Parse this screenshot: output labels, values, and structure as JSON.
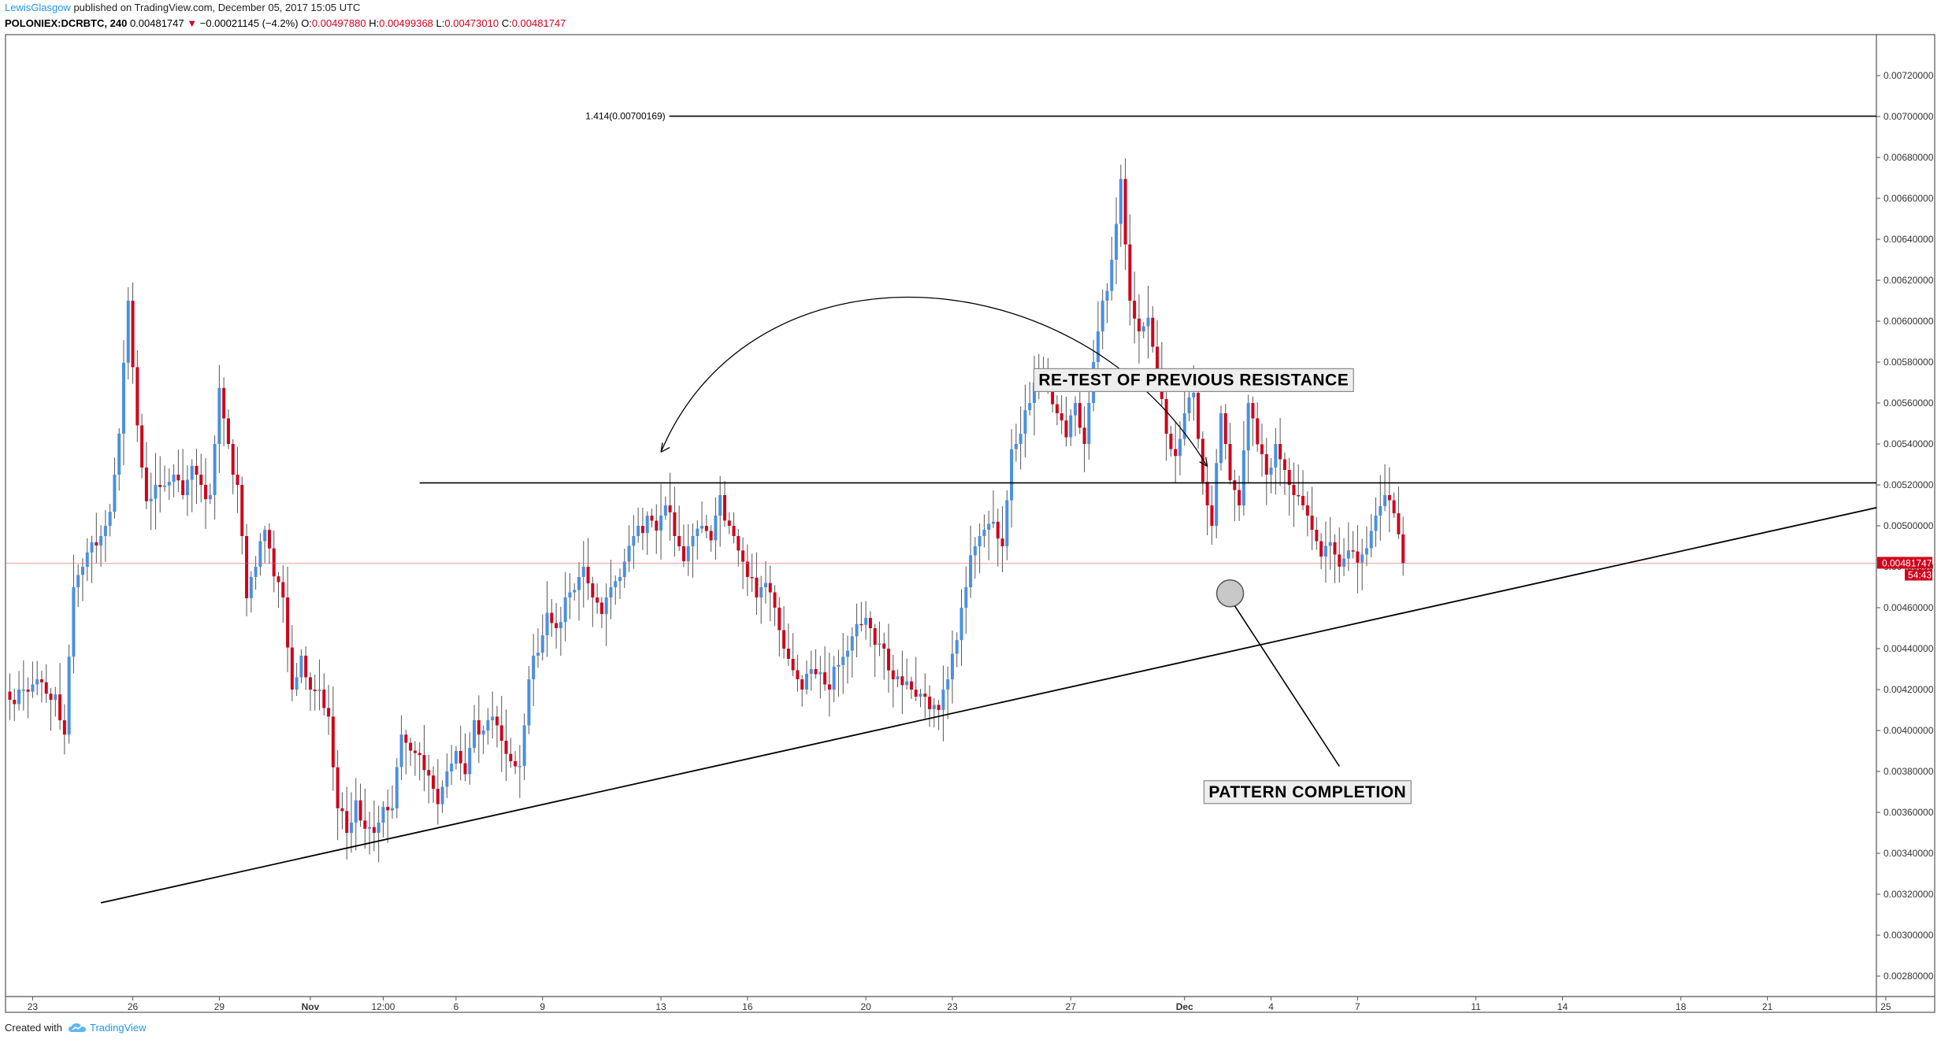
{
  "header": {
    "user": "LewisGlasgow",
    "published_text": " published on TradingView.com, December 05, 2017 15:05 UTC",
    "symbol": "POLONIEX:DCRBTC, 240",
    "last": "0.00481747",
    "change_arrow": "▼",
    "change": "−0.00021145 (−4.2%)",
    "o_label": "O:",
    "o_value": "0.00497880",
    "h_label": "H:",
    "h_value": "0.00499368",
    "l_label": "L:",
    "l_value": "0.00473010",
    "c_label": "C:",
    "c_value": "0.00481747"
  },
  "footer": {
    "created_with": "Created with",
    "brand": "TradingView",
    "logo_icon": "tradingview-cloud-icon"
  },
  "colors": {
    "up": "#4a90e2",
    "down": "#d0021b",
    "wick": "#555555",
    "last_price_label": "#d0021b",
    "border": "#555555"
  },
  "chart_data": {
    "type": "candlestick",
    "ylim": [
      0.0027,
      0.0074
    ],
    "price_axis_ticks": [
      "0.00280000",
      "0.00300000",
      "0.00320000",
      "0.00340000",
      "0.00360000",
      "0.00380000",
      "0.00400000",
      "0.00420000",
      "0.00440000",
      "0.00460000",
      "0.00480000",
      "0.00500000",
      "0.00520000",
      "0.00540000",
      "0.00560000",
      "0.00580000",
      "0.00600000",
      "0.00620000",
      "0.00640000",
      "0.00660000",
      "0.00680000",
      "0.00700000",
      "0.00720000"
    ],
    "time_axis_ticks": [
      {
        "label": "23",
        "bar": 5,
        "bold": false
      },
      {
        "label": "26",
        "bar": 27,
        "bold": false
      },
      {
        "label": "29",
        "bar": 46,
        "bold": false
      },
      {
        "label": "Nov",
        "bar": 66,
        "bold": true
      },
      {
        "label": "12:00",
        "bar": 82,
        "bold": false
      },
      {
        "label": "6",
        "bar": 98,
        "bold": false
      },
      {
        "label": "9",
        "bar": 117,
        "bold": false
      },
      {
        "label": "13",
        "bar": 143,
        "bold": false
      },
      {
        "label": "16",
        "bar": 162,
        "bold": false
      },
      {
        "label": "20",
        "bar": 188,
        "bold": false
      },
      {
        "label": "23",
        "bar": 207,
        "bold": false
      },
      {
        "label": "27",
        "bar": 233,
        "bold": false
      },
      {
        "label": "Dec",
        "bar": 258,
        "bold": true
      },
      {
        "label": "4",
        "bar": 277,
        "bold": false
      },
      {
        "label": "7",
        "bar": 296,
        "bold": false
      },
      {
        "label": "11",
        "bar": 322,
        "bold": false
      },
      {
        "label": "14",
        "bar": 341,
        "bold": false
      },
      {
        "label": "18",
        "bar": 367,
        "bold": false
      },
      {
        "label": "21",
        "bar": 386,
        "bold": false
      },
      {
        "label": "25",
        "bar": 412,
        "bold": false
      }
    ],
    "close_anchors": [
      [
        0,
        0.00415
      ],
      [
        2,
        0.0042
      ],
      [
        4,
        0.0042
      ],
      [
        6,
        0.00425
      ],
      [
        8,
        0.00418
      ],
      [
        10,
        0.00412
      ],
      [
        12,
        0.00398
      ],
      [
        14,
        0.0047
      ],
      [
        16,
        0.00482
      ],
      [
        18,
        0.00492
      ],
      [
        20,
        0.00495
      ],
      [
        22,
        0.00505
      ],
      [
        24,
        0.00545
      ],
      [
        26,
        0.0061
      ],
      [
        28,
        0.00545
      ],
      [
        30,
        0.00512
      ],
      [
        32,
        0.0052
      ],
      [
        34,
        0.00518
      ],
      [
        36,
        0.00525
      ],
      [
        38,
        0.00515
      ],
      [
        40,
        0.0053
      ],
      [
        42,
        0.0052
      ],
      [
        44,
        0.00515
      ],
      [
        46,
        0.00565
      ],
      [
        48,
        0.0054
      ],
      [
        50,
        0.0052
      ],
      [
        52,
        0.0047
      ],
      [
        54,
        0.0048
      ],
      [
        56,
        0.00498
      ],
      [
        58,
        0.0048
      ],
      [
        60,
        0.00465
      ],
      [
        62,
        0.0042
      ],
      [
        64,
        0.00432
      ],
      [
        66,
        0.0042
      ],
      [
        68,
        0.0042
      ],
      [
        70,
        0.00402
      ],
      [
        72,
        0.00362
      ],
      [
        74,
        0.0035
      ],
      [
        76,
        0.0036
      ],
      [
        78,
        0.00352
      ],
      [
        80,
        0.0035
      ],
      [
        82,
        0.0036
      ],
      [
        84,
        0.00362
      ],
      [
        86,
        0.00398
      ],
      [
        88,
        0.0039
      ],
      [
        90,
        0.00388
      ],
      [
        92,
        0.00378
      ],
      [
        94,
        0.00365
      ],
      [
        96,
        0.0038
      ],
      [
        98,
        0.0039
      ],
      [
        100,
        0.00378
      ],
      [
        102,
        0.00405
      ],
      [
        104,
        0.004
      ],
      [
        106,
        0.0041
      ],
      [
        108,
        0.00395
      ],
      [
        110,
        0.00385
      ],
      [
        112,
        0.0038
      ],
      [
        114,
        0.00425
      ],
      [
        116,
        0.00438
      ],
      [
        118,
        0.00455
      ],
      [
        120,
        0.0045
      ],
      [
        122,
        0.00465
      ],
      [
        124,
        0.0047
      ],
      [
        126,
        0.0048
      ],
      [
        128,
        0.00465
      ],
      [
        130,
        0.0046
      ],
      [
        132,
        0.0047
      ],
      [
        134,
        0.00475
      ],
      [
        136,
        0.0049
      ],
      [
        138,
        0.005
      ],
      [
        140,
        0.00505
      ],
      [
        142,
        0.005
      ],
      [
        144,
        0.0051
      ],
      [
        146,
        0.00495
      ],
      [
        148,
        0.00485
      ],
      [
        150,
        0.00495
      ],
      [
        152,
        0.005
      ],
      [
        154,
        0.00495
      ],
      [
        156,
        0.00515
      ],
      [
        158,
        0.005
      ],
      [
        160,
        0.0049
      ],
      [
        162,
        0.00475
      ],
      [
        164,
        0.00465
      ],
      [
        166,
        0.00475
      ],
      [
        168,
        0.0046
      ],
      [
        170,
        0.0044
      ],
      [
        172,
        0.0043
      ],
      [
        174,
        0.0042
      ],
      [
        176,
        0.0043
      ],
      [
        178,
        0.00425
      ],
      [
        180,
        0.0042
      ],
      [
        182,
        0.00432
      ],
      [
        184,
        0.0044
      ],
      [
        186,
        0.00452
      ],
      [
        188,
        0.00455
      ],
      [
        190,
        0.00445
      ],
      [
        192,
        0.0044
      ],
      [
        194,
        0.00425
      ],
      [
        196,
        0.00428
      ],
      [
        198,
        0.0042
      ],
      [
        200,
        0.00418
      ],
      [
        202,
        0.00415
      ],
      [
        204,
        0.0041
      ],
      [
        206,
        0.00425
      ],
      [
        208,
        0.0045
      ],
      [
        210,
        0.0047
      ],
      [
        212,
        0.0049
      ],
      [
        214,
        0.005
      ],
      [
        216,
        0.00502
      ],
      [
        218,
        0.0049
      ],
      [
        220,
        0.00535
      ],
      [
        222,
        0.00545
      ],
      [
        224,
        0.0056
      ],
      [
        226,
        0.0058
      ],
      [
        228,
        0.0057
      ],
      [
        230,
        0.00555
      ],
      [
        232,
        0.00548
      ],
      [
        234,
        0.0056
      ],
      [
        236,
        0.0054
      ],
      [
        238,
        0.0058
      ],
      [
        240,
        0.0061
      ],
      [
        242,
        0.0063
      ],
      [
        244,
        0.00665
      ],
      [
        246,
        0.0061
      ],
      [
        248,
        0.00595
      ],
      [
        250,
        0.006
      ],
      [
        252,
        0.00575
      ],
      [
        254,
        0.00545
      ],
      [
        256,
        0.0053
      ],
      [
        258,
        0.00555
      ],
      [
        260,
        0.00565
      ],
      [
        262,
        0.0052
      ],
      [
        264,
        0.005
      ],
      [
        266,
        0.00555
      ],
      [
        268,
        0.00525
      ],
      [
        270,
        0.0051
      ],
      [
        272,
        0.0056
      ],
      [
        274,
        0.00545
      ],
      [
        276,
        0.00525
      ],
      [
        278,
        0.0054
      ],
      [
        280,
        0.00525
      ],
      [
        282,
        0.00515
      ],
      [
        284,
        0.0051
      ],
      [
        286,
        0.005
      ],
      [
        288,
        0.00485
      ],
      [
        290,
        0.00492
      ],
      [
        292,
        0.0048
      ],
      [
        294,
        0.00488
      ],
      [
        296,
        0.00482
      ],
      [
        298,
        0.0049
      ],
      [
        300,
        0.00505
      ],
      [
        302,
        0.00515
      ],
      [
        304,
        0.0051
      ],
      [
        306,
        0.00481747
      ]
    ],
    "total_bars": 307,
    "last_price": {
      "value": 0.00481747,
      "label": "0.00481747",
      "countdown": "54:43"
    },
    "fib_level": {
      "label": "1.414(0.00700169)",
      "value": 0.00700169
    },
    "resistance_line": {
      "value": 0.00521,
      "from_bar": 90
    },
    "trendline": {
      "from": [
        20,
        0.003158
      ],
      "to": [
        410,
        0.005089
      ]
    },
    "arc": {
      "from": [
        143,
        0.00536
      ],
      "peak": [
        200,
        0.00618
      ],
      "to": [
        263,
        0.00529
      ]
    },
    "completion_circle": {
      "bar": 268,
      "value": 0.00467
    },
    "annotations": [
      {
        "text": "RE-TEST OF PREVIOUS RESISTANCE",
        "bar": 260,
        "value": 0.005687
      },
      {
        "text": "PATTERN COMPLETION",
        "bar": 285,
        "value": 0.003674
      }
    ]
  }
}
